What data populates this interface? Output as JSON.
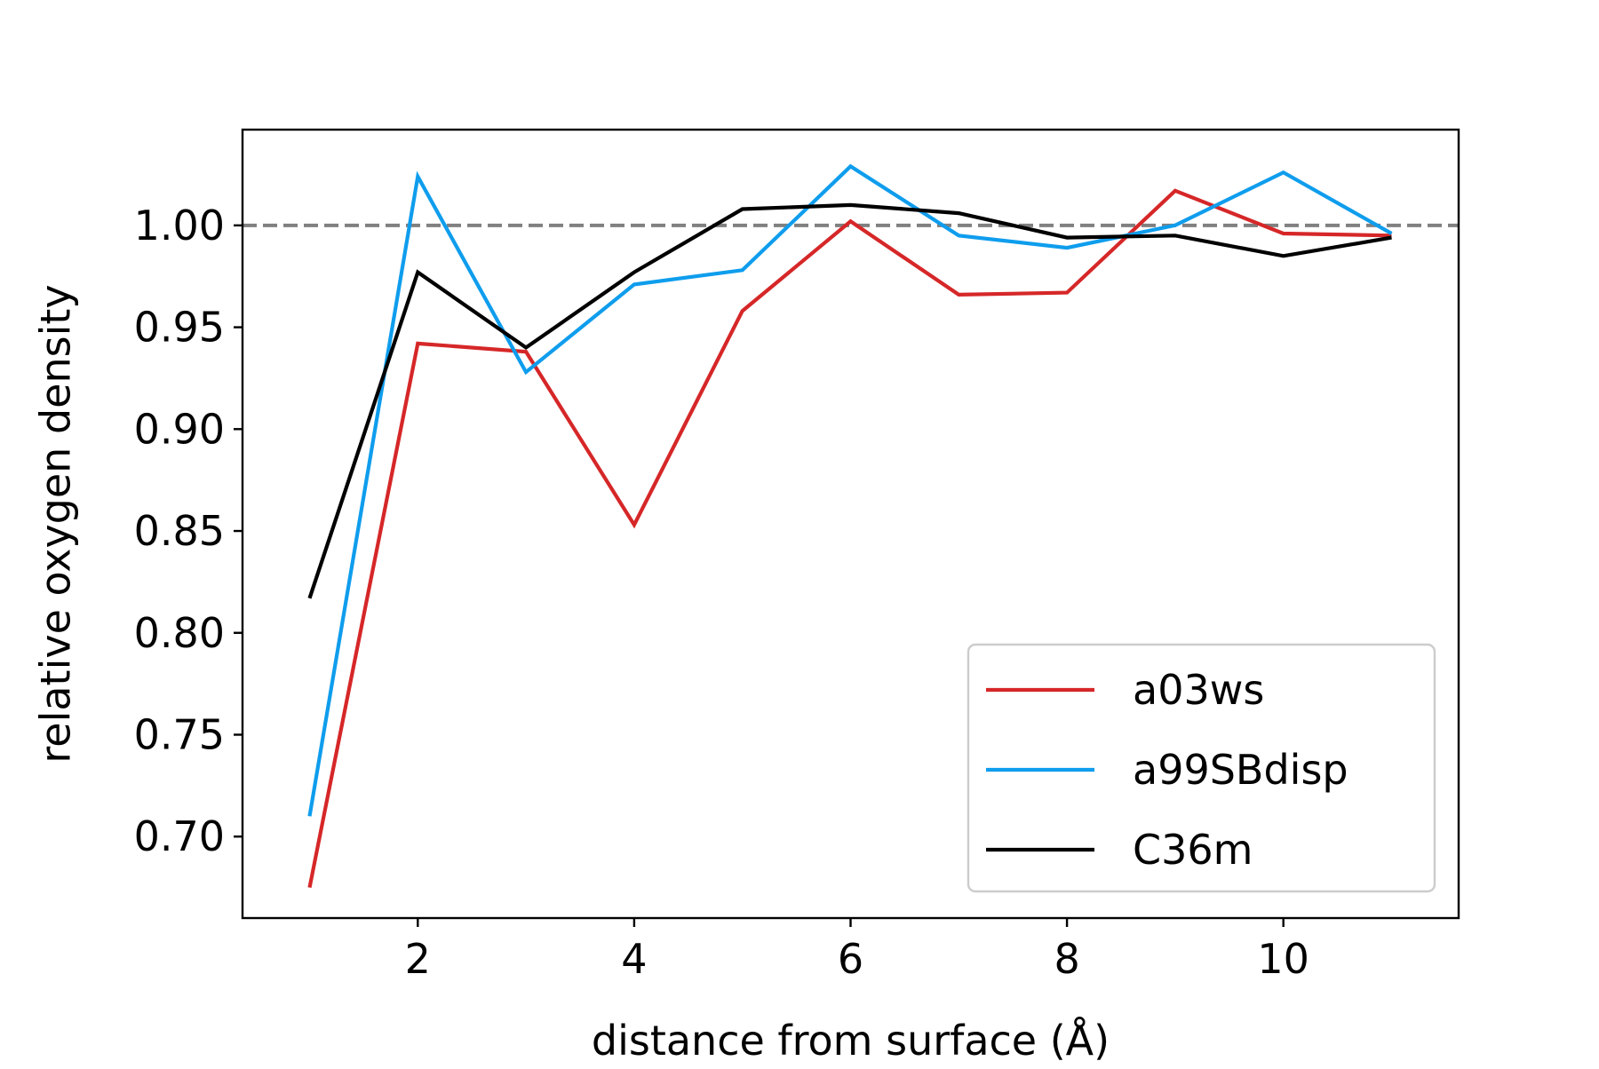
{
  "chart_data": {
    "type": "line",
    "title": "",
    "xlabel": "distance from surface (Å)",
    "ylabel": "relative oxygen density",
    "xlim": [
      0.38,
      11.62
    ],
    "ylim": [
      0.66,
      1.047
    ],
    "xticks": [
      2,
      4,
      6,
      8,
      10
    ],
    "xtick_labels": [
      "2",
      "4",
      "6",
      "8",
      "10"
    ],
    "yticks": [
      0.7,
      0.75,
      0.8,
      0.85,
      0.9,
      0.95,
      1.0
    ],
    "ytick_labels": [
      "0.70",
      "0.75",
      "0.80",
      "0.85",
      "0.90",
      "0.95",
      "1.00"
    ],
    "grid": false,
    "legend_position": "lower-right",
    "reference_line": {
      "y": 1.0,
      "style": "dashed",
      "color": "#808080"
    },
    "x": [
      1,
      2,
      3,
      4,
      5,
      6,
      7,
      8,
      9,
      10,
      11
    ],
    "series": [
      {
        "name": "a03ws",
        "color": "#d62728",
        "values": [
          0.675,
          0.942,
          0.938,
          0.853,
          0.958,
          1.002,
          0.966,
          0.967,
          1.017,
          0.996,
          0.995
        ]
      },
      {
        "name": "a99SBdisp",
        "color": "#0f9ded",
        "values": [
          0.71,
          1.024,
          0.928,
          0.971,
          0.978,
          1.029,
          0.995,
          0.989,
          1.0,
          1.026,
          0.996
        ]
      },
      {
        "name": "C36m",
        "color": "#000000",
        "values": [
          0.817,
          0.977,
          0.94,
          0.977,
          1.008,
          1.01,
          1.006,
          0.994,
          0.995,
          0.985,
          0.994
        ]
      }
    ]
  }
}
